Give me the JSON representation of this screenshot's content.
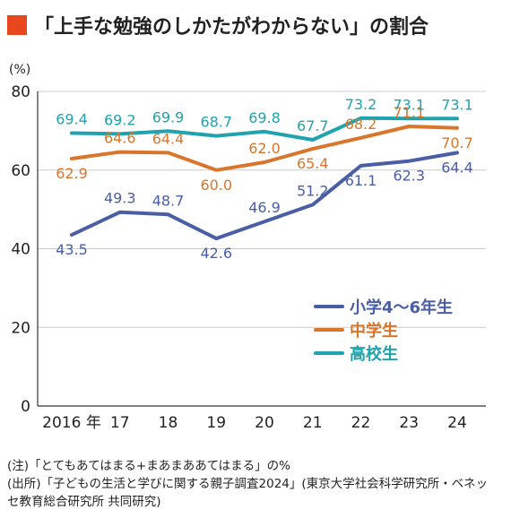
{
  "title": "「上手な勉強のしかたがわからない」の割合",
  "colors": {
    "title_mark": "#e8461d",
    "elementary": "#4a5ea6",
    "junior_high": "#d9762b",
    "high_school": "#1fa3ae",
    "grid": "#cccccc",
    "axis": "#333333"
  },
  "chart_data": {
    "type": "line",
    "title": "「上手な勉強のしかたがわからない」の割合",
    "ylabel": "(%)",
    "ylim": [
      0,
      80
    ],
    "yticks": [
      0,
      20,
      40,
      60,
      80
    ],
    "x": [
      "2016 年",
      "17",
      "18",
      "19",
      "20",
      "21",
      "22",
      "23",
      "24"
    ],
    "grid": true,
    "legend_position": "lower-right",
    "series": [
      {
        "name": "小学4〜6年生",
        "color": "#4a5ea6",
        "values": [
          43.5,
          49.3,
          48.7,
          42.6,
          46.9,
          51.2,
          61.1,
          62.3,
          64.4
        ],
        "labels": [
          "43.5",
          "49.3",
          "48.7",
          "42.6",
          "46.9",
          "51.2",
          "61.1",
          "62.3",
          "64.4"
        ]
      },
      {
        "name": "中学生",
        "color": "#d9762b",
        "values": [
          62.9,
          64.6,
          64.4,
          60.0,
          62.0,
          65.4,
          68.2,
          71.1,
          70.7
        ],
        "labels": [
          "62.9",
          "64.6",
          "64.4",
          "60.0",
          "62.0",
          "65.4",
          "68.2",
          "71.1",
          "70.7"
        ]
      },
      {
        "name": "高校生",
        "color": "#1fa3ae",
        "values": [
          69.4,
          69.2,
          69.9,
          68.7,
          69.8,
          67.7,
          73.2,
          73.1,
          73.1
        ],
        "labels": [
          "69.4",
          "69.2",
          "69.9",
          "68.7",
          "69.8",
          "67.7",
          "73.2",
          "73.1",
          "73.1"
        ]
      }
    ]
  },
  "notes": [
    "(注)「とてもあてはまる+まあまああてはまる」の%",
    "(出所)「子どもの生活と学びに関する親子調査2024」(東京大学社会科学研究所・ベネッ",
    "セ教育総合研究所 共同研究)"
  ]
}
